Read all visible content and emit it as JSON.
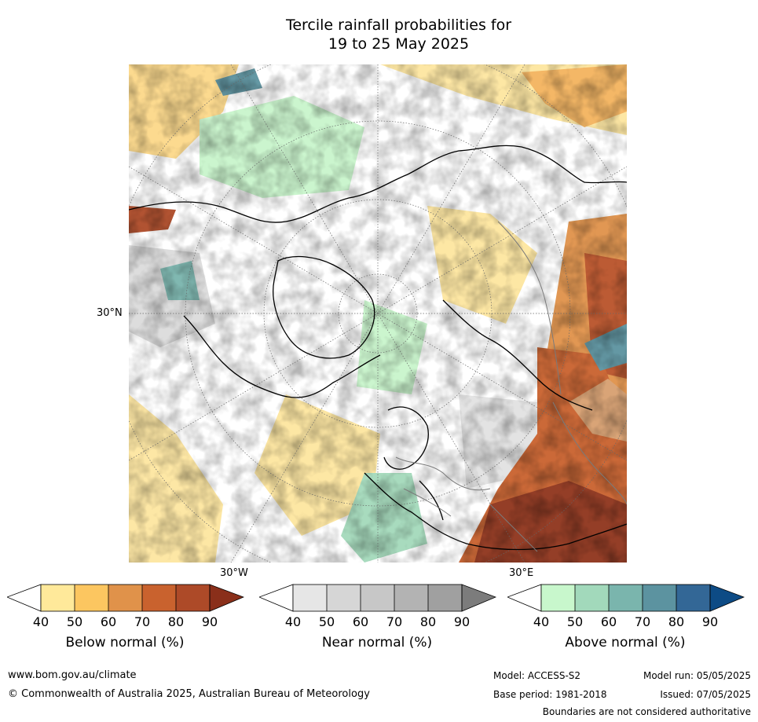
{
  "title_line1": "Tercile rainfall probabilities for",
  "title_line2": "19 to 25 May 2025",
  "labels": {
    "lat_30n": "30°N",
    "lon_30w": "30°W",
    "lon_30e": "30°E"
  },
  "colorbars": [
    {
      "title": "Below normal (%)",
      "ticks": [
        "40",
        "50",
        "60",
        "70",
        "80",
        "90"
      ],
      "colors": [
        "#ffffff",
        "#ffe99a",
        "#fcc660",
        "#e0924a",
        "#c9622e",
        "#ad4a28",
        "#8a2f1a"
      ]
    },
    {
      "title": "Near normal (%)",
      "ticks": [
        "40",
        "50",
        "60",
        "70",
        "80",
        "90"
      ],
      "colors": [
        "#ffffff",
        "#e6e6e6",
        "#d6d6d6",
        "#c7c7c7",
        "#b3b3b3",
        "#a0a0a0",
        "#7c7c7c"
      ]
    },
    {
      "title": "Above normal (%)",
      "ticks": [
        "40",
        "50",
        "60",
        "70",
        "80",
        "90"
      ],
      "colors": [
        "#ffffff",
        "#c8f7cc",
        "#a2d9bb",
        "#7ab5ad",
        "#5c93a0",
        "#336796",
        "#0d4b85"
      ]
    }
  ],
  "footer": {
    "website": "www.bom.gov.au/climate",
    "copyright": "© Commonwealth of Australia 2025, Australian Bureau of Meteorology",
    "model": "Model: ACCESS-S2",
    "model_run": "Model run: 05/05/2025",
    "base_period": "Base period: 1981-2018",
    "issued": "Issued: 07/05/2025",
    "disclaimer": "Boundaries are not considered authoritative"
  }
}
